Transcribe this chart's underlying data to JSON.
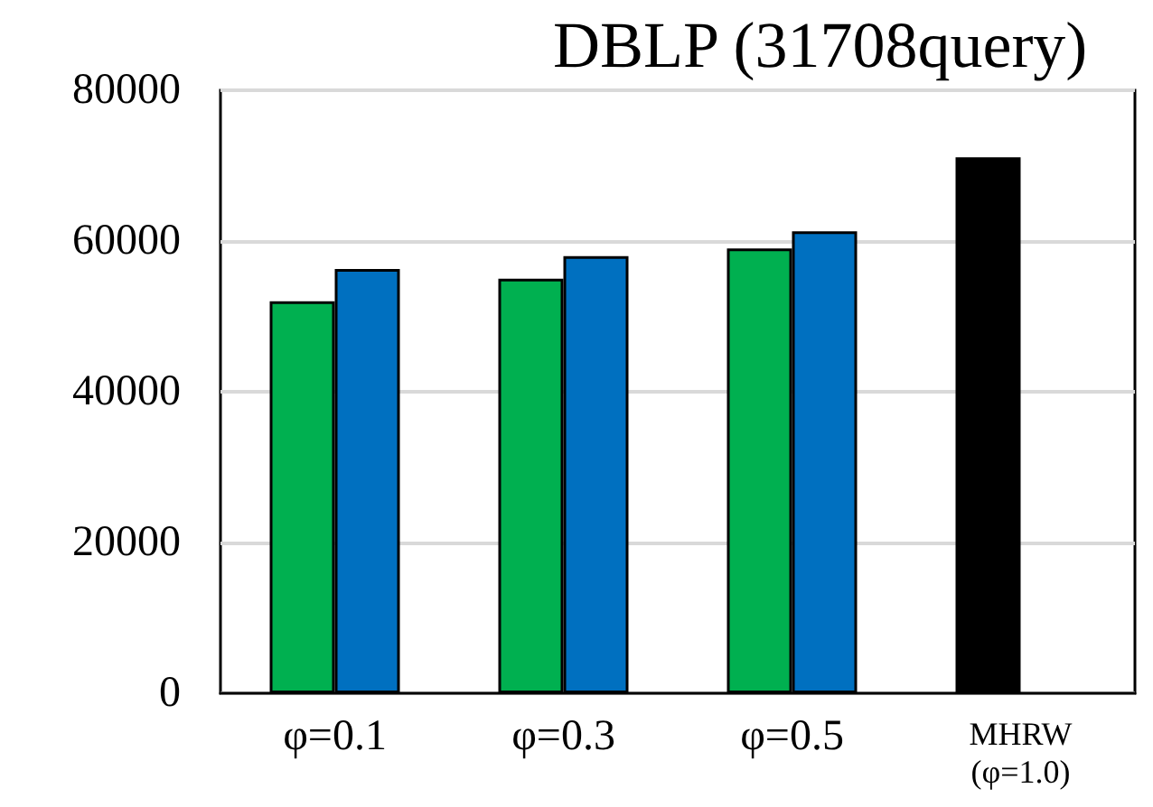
{
  "chart_data": {
    "type": "bar",
    "title": "DBLP (31708query)",
    "categories": [
      "φ=0.1",
      "φ=0.3",
      "φ=0.5",
      "MHRW\n(φ=1.0)"
    ],
    "series": [
      {
        "colors": [
          "#00b050",
          "#00b050",
          "#00b050",
          "#000000"
        ],
        "values": [
          52000,
          55000,
          59000,
          71100
        ]
      },
      {
        "color": "#0070c0",
        "values": [
          56300,
          58000,
          61300,
          null
        ]
      }
    ],
    "ylim": [
      0,
      80000
    ],
    "yticks": [
      0,
      20000,
      40000,
      60000,
      80000
    ],
    "grid": "y"
  }
}
